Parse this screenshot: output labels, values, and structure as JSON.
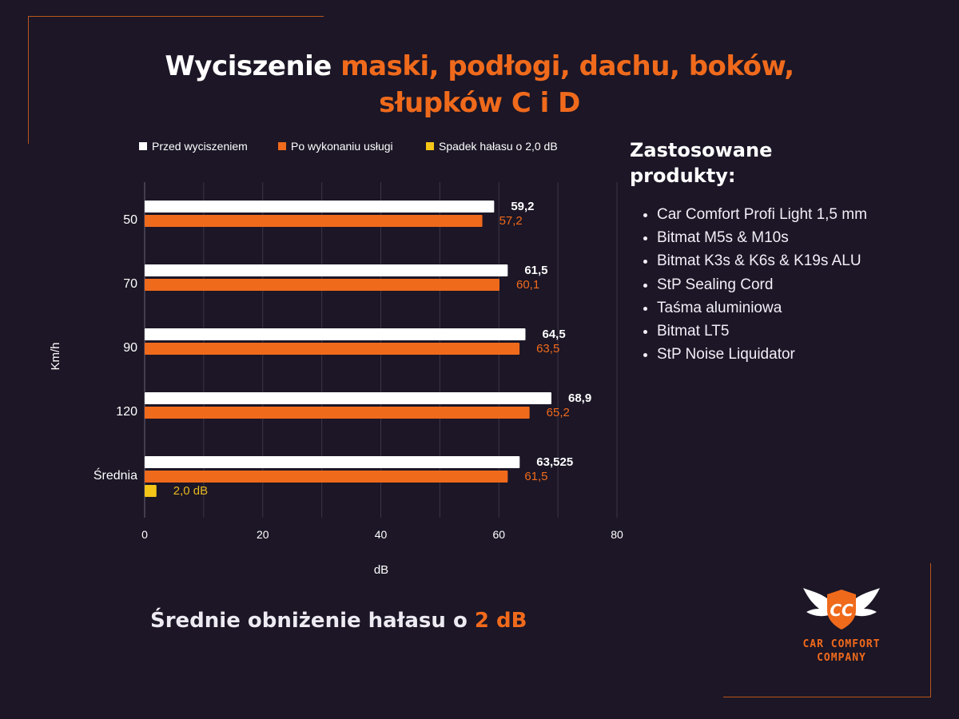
{
  "title": {
    "lead": "Wyciszenie ",
    "accent_line1": "maski, podłogi, dachu, boków,",
    "accent_line2": "słupków C i D"
  },
  "colors": {
    "background": "#1c1626",
    "accent": "#f06a1c",
    "before": "#ffffff",
    "after": "#f06a1c",
    "drop": "#f5c518",
    "frame": "#b9561d"
  },
  "chart_data": {
    "type": "bar",
    "orientation": "horizontal",
    "categories": [
      "50",
      "70",
      "90",
      "120",
      "Średnia"
    ],
    "series": [
      {
        "name": "Przed wyciszeniem",
        "values": [
          59.2,
          61.5,
          64.5,
          68.9,
          63.525
        ],
        "labels": [
          "59,2",
          "61,5",
          "64,5",
          "68,9",
          "63,525"
        ]
      },
      {
        "name": "Po wykonaniu usługi",
        "values": [
          57.2,
          60.1,
          63.5,
          65.2,
          61.5
        ],
        "labels": [
          "57,2",
          "60,1",
          "63,5",
          "65,2",
          "61,5"
        ]
      },
      {
        "name": "Spadek hałasu o 2,0 dB",
        "values": [
          null,
          null,
          null,
          null,
          2.0
        ],
        "labels": [
          "",
          "",
          "",
          "",
          "2,0 dB"
        ]
      }
    ],
    "xlabel": "dB",
    "ylabel": "Km/h",
    "xlim": [
      0,
      80
    ],
    "xticks": [
      0,
      20,
      40,
      60,
      80
    ],
    "grid": true,
    "legend_position": "top"
  },
  "products": {
    "heading": "Zastosowane produkty:",
    "items": [
      "Car Comfort Profi Light 1,5 mm",
      "Bitmat M5s & M10s",
      "Bitmat K3s & K6s & K19s ALU",
      "StP Sealing Cord",
      "Taśma aluminiowa",
      "Bitmat LT5",
      "StP Noise Liquidator"
    ]
  },
  "summary": {
    "text": "Średnie obniżenie hałasu o ",
    "accent": "2 dB"
  },
  "logo": {
    "monogram": "CC",
    "line1": "CAR COMFORT",
    "line2": "COMPANY"
  }
}
